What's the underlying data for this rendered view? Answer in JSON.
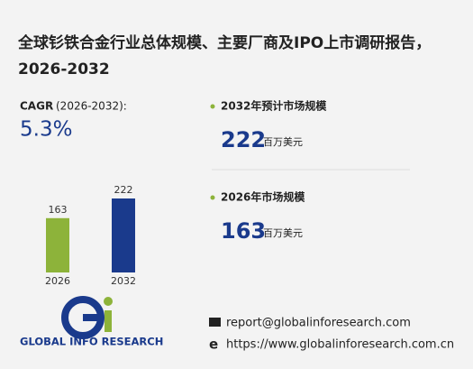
{
  "title": "全球钐铁合金行业总体规模、主要厂商及IPO上市调研报告，2026-2032",
  "cagr": {
    "label": "CAGR",
    "period": "(2026-2032):",
    "value": "5.3%"
  },
  "stats": [
    {
      "label": "2032年预计市场规模",
      "value": "222",
      "unit": "百万美元"
    },
    {
      "label": "2026年市场规模",
      "value": "163",
      "unit": "百万美元"
    }
  ],
  "chart_data": {
    "type": "bar",
    "categories": [
      "2026",
      "2032"
    ],
    "values": [
      163,
      222
    ],
    "colors": [
      "#8db33a",
      "#1a3a8c"
    ]
  },
  "footer": {
    "logo": "GLOBAL INFO RESEARCH",
    "email": "report@globalinforesearch.com",
    "website": "https://www.globalinforesearch.com.cn"
  }
}
